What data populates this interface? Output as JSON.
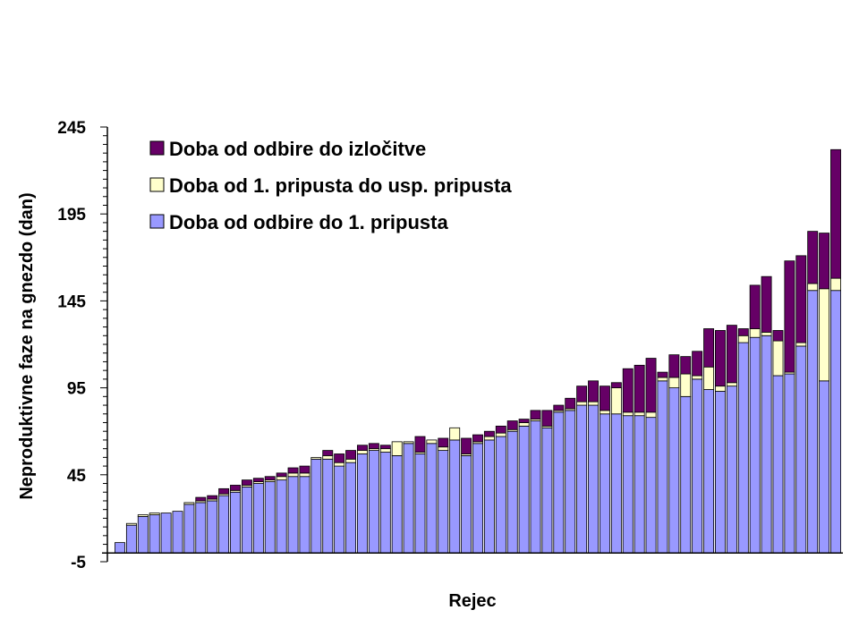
{
  "chart_data": {
    "type": "bar",
    "stacked": true,
    "xlabel": "Rejec",
    "ylabel": "Neproduktivne faze na gnezdo (dan)",
    "ylim": [
      -5,
      245
    ],
    "yticks": [
      -5,
      45,
      95,
      145,
      195,
      245
    ],
    "legend_position": "top-left",
    "series": [
      {
        "name": "Doba od odbire do 1. pripusta",
        "color": "#9999ff",
        "values": [
          6,
          16,
          21,
          22,
          23,
          24,
          28,
          29,
          30,
          33,
          35,
          38,
          40,
          41,
          42,
          44,
          44,
          54,
          54,
          50,
          52,
          57,
          59,
          58,
          56,
          63,
          57,
          63,
          59,
          65,
          56,
          63,
          65,
          67,
          70,
          73,
          76,
          72,
          81,
          82,
          85,
          85,
          80,
          80,
          79,
          79,
          78,
          99,
          95,
          90,
          100,
          94,
          93,
          96,
          121,
          124,
          125,
          102,
          103,
          119,
          151,
          99,
          151
        ]
      },
      {
        "name": "Doba od 1. pripusta do usp. pripusta",
        "color": "#ffffcc",
        "values": [
          0,
          1,
          1,
          1,
          0,
          0,
          1,
          1,
          1,
          1,
          1,
          1,
          1,
          1,
          2,
          2,
          2,
          1,
          2,
          2,
          2,
          2,
          1,
          2,
          8,
          1,
          1,
          2,
          2,
          7,
          1,
          1,
          2,
          2,
          1,
          2,
          1,
          1,
          1,
          1,
          2,
          2,
          2,
          15,
          2,
          2,
          3,
          2,
          6,
          13,
          2,
          13,
          3,
          2,
          4,
          5,
          2,
          20,
          1,
          2,
          4,
          53,
          7
        ]
      },
      {
        "name": "Doba od odbire do izločitve",
        "color": "#660066",
        "values": [
          0,
          0,
          0,
          0,
          0,
          0,
          0,
          2,
          2,
          3,
          3,
          3,
          2,
          2,
          2,
          3,
          4,
          0,
          3,
          5,
          5,
          3,
          3,
          2,
          0,
          0,
          9,
          0,
          5,
          0,
          9,
          4,
          3,
          4,
          5,
          2,
          5,
          9,
          3,
          6,
          9,
          12,
          14,
          3,
          25,
          27,
          31,
          3,
          13,
          10,
          14,
          22,
          32,
          33,
          4,
          25,
          32,
          6,
          64,
          50,
          30,
          32,
          74
        ]
      }
    ]
  }
}
